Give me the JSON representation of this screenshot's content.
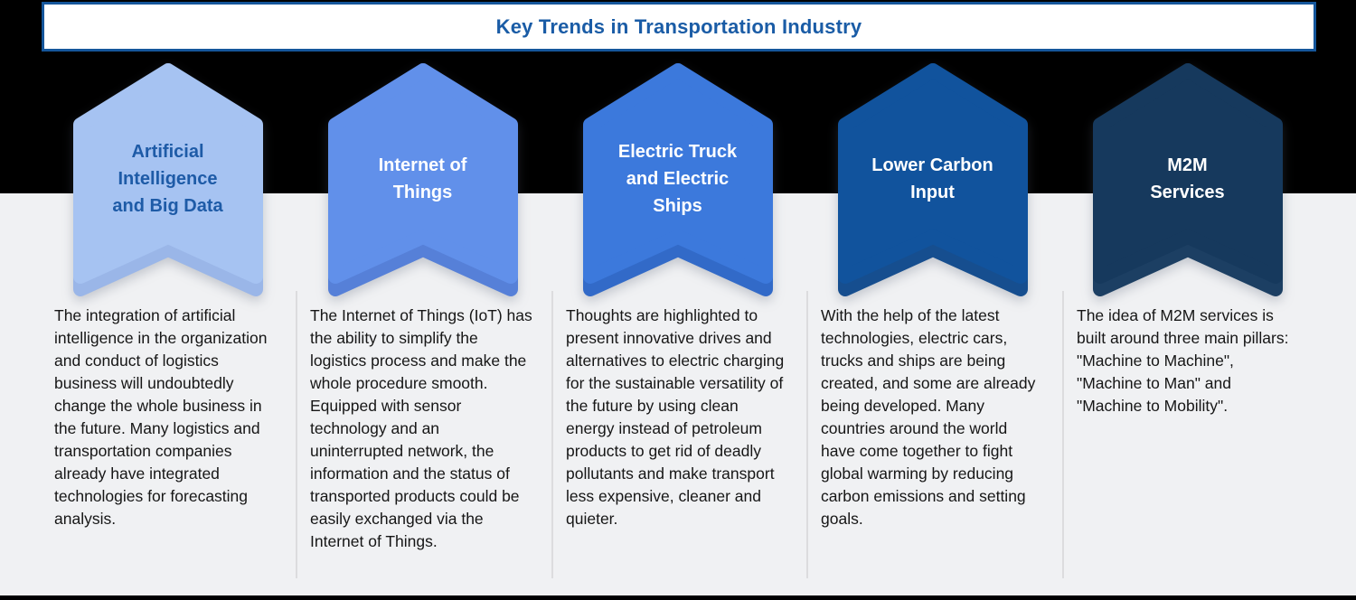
{
  "header": {
    "title": "Key Trends in Transportation Industry"
  },
  "colors": {
    "title_text": "#1A5CA6",
    "title_border": "#15569B",
    "page_background": "#000000",
    "content_background": "#F0F1F3",
    "divider": "#DCDCDE",
    "description_text": "#161616"
  },
  "trends": [
    {
      "title": "Artificial Intelligence and Big Data",
      "title_lines": [
        "Artificial",
        "Intelligence",
        "and Big Data"
      ],
      "banner_color": "#A6C3F2",
      "fold_color": "#9AB6E8",
      "title_color": "#1E5BA7",
      "description": "The integration of artificial intelligence in the organization and conduct of logistics business will undoubtedly change the whole business in the future. Many logistics and transportation companies already have integrated technologies for forecasting analysis."
    },
    {
      "title": "Internet of Things",
      "title_lines": [
        "Internet of",
        "Things"
      ],
      "banner_color": "#6190EA",
      "fold_color": "#5680D8",
      "title_color": "#FFFFFF",
      "description": "The Internet of Things (IoT) has the ability to simplify the logistics process and make the whole procedure smooth. Equipped with sensor technology and an uninterrupted network, the information and the status of transported products could be easily exchanged via the Internet of Things."
    },
    {
      "title": "Electric Truck and Electric Ships",
      "title_lines": [
        "Electric Truck",
        "and Electric",
        "Ships"
      ],
      "banner_color": "#3C79DC",
      "fold_color": "#326AC8",
      "title_color": "#FFFFFF",
      "description": "Thoughts are highlighted to present innovative drives and alternatives to electric charging for the sustainable versatility of the future by using clean energy instead of petroleum products to get rid of deadly pollutants and make transport less expensive, cleaner and quieter."
    },
    {
      "title": "Lower Carbon Input",
      "title_lines": [
        "Lower Carbon",
        "Input"
      ],
      "banner_color": "#11539D",
      "fold_color": "#164E8F",
      "title_color": "#FFFFFF",
      "description": "With the help of the latest technologies, electric cars, trucks and ships are being created, and some are already being developed. Many countries around the world have come together to fight global warming by reducing carbon emissions and setting goals."
    },
    {
      "title": "M2M Services",
      "title_lines": [
        "M2M",
        "Services"
      ],
      "banner_color": "#16395D",
      "fold_color": "#1C3F63",
      "title_color": "#FFFFFF",
      "description": "The idea of M2M services is built around three main pillars: \"Machine to Machine\", \"Machine to Man\" and \"Machine to Mobility\"."
    }
  ]
}
